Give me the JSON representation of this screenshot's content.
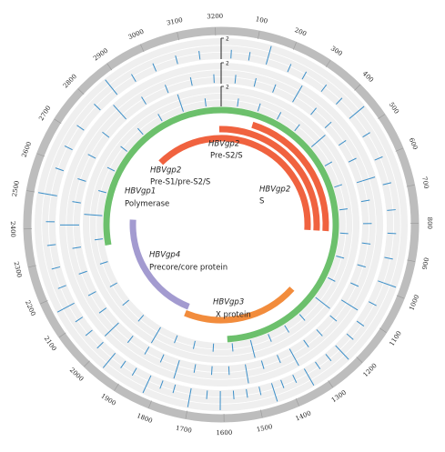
{
  "chart_data": {
    "type": "circos",
    "xlim": [
      0,
      3215
    ],
    "xticks": [
      100,
      200,
      300,
      400,
      500,
      600,
      700,
      800,
      900,
      1000,
      1100,
      1200,
      1300,
      1400,
      1500,
      1600,
      1700,
      1800,
      1900,
      2000,
      2100,
      2200,
      2300,
      2400,
      2500,
      2600,
      2700,
      2800,
      2900,
      3000,
      3100,
      3200
    ],
    "tracks": [
      {
        "color": "#3a8ec8",
        "ylim": [
          0,
          2
        ],
        "yticks": [
          2
        ],
        "x": [
          30,
          85,
          140,
          210,
          260,
          330,
          390,
          450,
          520,
          600,
          680,
          760,
          830,
          905,
          980,
          1050,
          1120,
          1170,
          1220,
          1260,
          1300,
          1340,
          1380,
          1420,
          1450,
          1490,
          1530,
          1570,
          1610,
          1650,
          1700,
          1750,
          1790,
          1830,
          1880,
          1920,
          1960,
          2010,
          2060,
          2110,
          2160,
          2220,
          2280,
          2350,
          2420,
          2500,
          2580,
          2650,
          2720,
          2800,
          2870,
          2940,
          3010,
          3080,
          3150
        ],
        "values": [
          1,
          1,
          2,
          1,
          1,
          1,
          1,
          2,
          1,
          1,
          1,
          1,
          1,
          1,
          2,
          1,
          1,
          1,
          2,
          1,
          1,
          2,
          1,
          1,
          2,
          1,
          1,
          1,
          2,
          1,
          2,
          1,
          1,
          2,
          1,
          1,
          2,
          1,
          1,
          1,
          2,
          1,
          1,
          1,
          1,
          2,
          1,
          1,
          1,
          1,
          2,
          1,
          1,
          1,
          1
        ]
      },
      {
        "color": "#3a8ec8",
        "ylim": [
          0,
          2
        ],
        "yticks": [
          2
        ],
        "x": [
          50,
          120,
          190,
          270,
          350,
          420,
          500,
          570,
          650,
          720,
          800,
          870,
          950,
          1020,
          1090,
          1160,
          1230,
          1290,
          1350,
          1400,
          1460,
          1520,
          1580,
          1640,
          1700,
          1760,
          1820,
          1880,
          1950,
          2020,
          2090,
          2160,
          2240,
          2330,
          2410,
          2490,
          2570,
          2660,
          2750,
          2840,
          2930,
          3020,
          3110,
          3190
        ],
        "values": [
          1,
          1,
          1,
          2,
          1,
          1,
          1,
          1,
          2,
          1,
          1,
          1,
          1,
          1,
          2,
          1,
          1,
          1,
          2,
          1,
          1,
          2,
          1,
          1,
          1,
          2,
          1,
          1,
          1,
          2,
          1,
          1,
          1,
          1,
          2,
          1,
          1,
          1,
          1,
          2,
          1,
          1,
          1,
          1
        ]
      },
      {
        "color": "#3a8ec8",
        "ylim": [
          0,
          2
        ],
        "yticks": [
          2
        ],
        "x": [
          70,
          160,
          250,
          340,
          440,
          540,
          640,
          740,
          840,
          940,
          1040,
          1140,
          1240,
          1320,
          1400,
          1480,
          1560,
          1640,
          1720,
          1800,
          1880,
          1970,
          2060,
          2150,
          2250,
          2350,
          2450,
          2550,
          2650,
          2750,
          2850,
          2950,
          3050,
          3150
        ],
        "values": [
          1,
          1,
          1,
          1,
          2,
          1,
          1,
          1,
          1,
          1,
          1,
          2,
          1,
          1,
          1,
          2,
          1,
          1,
          1,
          1,
          2,
          1,
          1,
          1,
          1,
          1,
          2,
          1,
          1,
          1,
          1,
          1,
          2,
          1
        ]
      }
    ],
    "genes": [
      {
        "name": "HBVgp1",
        "label": "Polymerase",
        "start": 2320,
        "end": 1580,
        "color": "#6cc06c"
      },
      {
        "name": "HBVgp2",
        "label": "Pre-S1/pre-S2/S",
        "start": 2820,
        "end": 835,
        "color": "#f0623f"
      },
      {
        "name": "HBVgp2",
        "label": "Pre-S2/S",
        "start": 3205,
        "end": 835,
        "color": "#f0623f"
      },
      {
        "name": "HBVgp2",
        "label": "S",
        "start": 155,
        "end": 835,
        "color": "#f0623f"
      },
      {
        "name": "HBVgp4",
        "label": "Precore/core protein",
        "start": 1800,
        "end": 2440,
        "color": "#a39bd0"
      },
      {
        "name": "HBVgp3",
        "label": "X protein",
        "start": 1180,
        "end": 1805,
        "color": "#f28c3c"
      }
    ]
  }
}
